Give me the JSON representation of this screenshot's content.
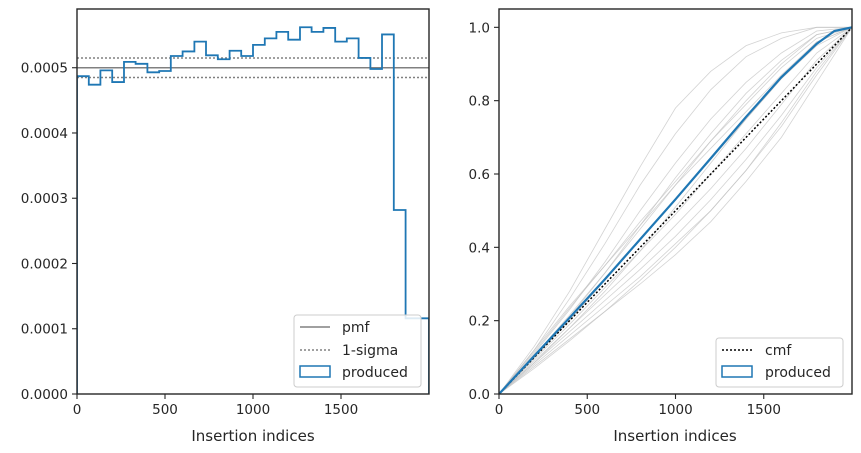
{
  "chart_data": [
    {
      "type": "line",
      "xlabel": "Insertion indices",
      "ylabel": "",
      "xlim": [
        0,
        2000
      ],
      "ylim": [
        0,
        0.00059
      ],
      "xticks": [
        0,
        500,
        1000,
        1500
      ],
      "xtick_labels": [
        "0",
        "500",
        "1000",
        "1500"
      ],
      "yticks": [
        0,
        0.0001,
        0.0002,
        0.0003,
        0.0004,
        0.0005
      ],
      "ytick_labels": [
        "0.0000",
        "0.0001",
        "0.0002",
        "0.0003",
        "0.0004",
        "0.0005"
      ],
      "grid": false,
      "legend_position": "lower-right",
      "colors": {
        "pmf": "#808080",
        "sigma": "#808080",
        "produced": "#1f77b4"
      },
      "legend": [
        {
          "label": "pmf",
          "style": "solid-line"
        },
        {
          "label": "1-sigma",
          "style": "dotted-line"
        },
        {
          "label": "produced",
          "style": "box"
        }
      ],
      "pmf": 0.0005,
      "sigma_band": [
        0.000485,
        0.000515
      ],
      "histogram": {
        "bin_edges": [
          0,
          67,
          133,
          200,
          267,
          333,
          400,
          467,
          533,
          600,
          667,
          733,
          800,
          867,
          933,
          1000,
          1067,
          1133,
          1200,
          1267,
          1333,
          1400,
          1467,
          1533,
          1600,
          1667,
          1733,
          1800,
          1867,
          1933,
          2000
        ],
        "values": [
          0.000487,
          0.000474,
          0.000496,
          0.000478,
          0.000509,
          0.000506,
          0.000493,
          0.000495,
          0.000518,
          0.000525,
          0.00054,
          0.000519,
          0.000513,
          0.000526,
          0.000518,
          0.000535,
          0.000545,
          0.000555,
          0.000543,
          0.000562,
          0.000555,
          0.000561,
          0.00054,
          0.000545,
          0.000515,
          0.000498,
          0.000551,
          0.000282,
          0.000116,
          0.000116
        ]
      }
    },
    {
      "type": "line",
      "xlabel": "Insertion indices",
      "ylabel": "",
      "xlim": [
        0,
        2000
      ],
      "ylim": [
        0,
        1.05
      ],
      "xticks": [
        0,
        500,
        1000,
        1500
      ],
      "xtick_labels": [
        "0",
        "500",
        "1000",
        "1500"
      ],
      "yticks": [
        0,
        0.2,
        0.4,
        0.6,
        0.8,
        1.0
      ],
      "ytick_labels": [
        "0.0",
        "0.2",
        "0.4",
        "0.6",
        "0.8",
        "1.0"
      ],
      "grid": false,
      "legend_position": "lower-right",
      "colors": {
        "cmf": "#000000",
        "produced": "#1f77b4",
        "runs": "#c0c0c0"
      },
      "legend": [
        {
          "label": "cmf",
          "style": "dotted-line"
        },
        {
          "label": "produced",
          "style": "box"
        }
      ],
      "cmf": {
        "x": [
          0,
          2000
        ],
        "y": [
          0,
          1
        ]
      },
      "produced": {
        "x": [
          0,
          200,
          400,
          600,
          800,
          1000,
          1200,
          1400,
          1600,
          1800,
          1900,
          2000
        ],
        "y": [
          0,
          0.104,
          0.208,
          0.313,
          0.422,
          0.531,
          0.643,
          0.756,
          0.864,
          0.955,
          0.99,
          1.0
        ]
      },
      "runs": [
        {
          "x": [
            0,
            200,
            400,
            600,
            800,
            1000,
            1200,
            1400,
            1600,
            1800,
            2000
          ],
          "y": [
            0,
            0.13,
            0.28,
            0.45,
            0.62,
            0.78,
            0.88,
            0.95,
            0.985,
            1.0,
            1.0
          ]
        },
        {
          "x": [
            0,
            200,
            400,
            600,
            800,
            1000,
            1200,
            1400,
            1600,
            1800,
            2000
          ],
          "y": [
            0,
            0.12,
            0.26,
            0.41,
            0.57,
            0.71,
            0.83,
            0.92,
            0.97,
            1.0,
            1.0
          ]
        },
        {
          "x": [
            0,
            200,
            400,
            600,
            800,
            1000,
            1200,
            1400,
            1600,
            1800,
            2000
          ],
          "y": [
            0,
            0.11,
            0.23,
            0.36,
            0.5,
            0.63,
            0.75,
            0.85,
            0.93,
            0.99,
            1.0
          ]
        },
        {
          "x": [
            0,
            200,
            400,
            600,
            800,
            1000,
            1200,
            1400,
            1600,
            1800,
            2000
          ],
          "y": [
            0,
            0.105,
            0.215,
            0.33,
            0.45,
            0.57,
            0.69,
            0.8,
            0.9,
            0.98,
            1.0
          ]
        },
        {
          "x": [
            0,
            200,
            400,
            600,
            800,
            1000,
            1200,
            1400,
            1600,
            1800,
            2000
          ],
          "y": [
            0,
            0.1,
            0.2,
            0.31,
            0.42,
            0.53,
            0.64,
            0.75,
            0.86,
            0.96,
            1.0
          ]
        },
        {
          "x": [
            0,
            200,
            400,
            600,
            800,
            1000,
            1200,
            1400,
            1600,
            1800,
            2000
          ],
          "y": [
            0,
            0.095,
            0.19,
            0.29,
            0.39,
            0.49,
            0.6,
            0.71,
            0.82,
            0.93,
            1.0
          ]
        },
        {
          "x": [
            0,
            200,
            400,
            600,
            800,
            1000,
            1200,
            1400,
            1600,
            1800,
            2000
          ],
          "y": [
            0,
            0.09,
            0.18,
            0.27,
            0.36,
            0.46,
            0.56,
            0.67,
            0.79,
            0.91,
            1.0
          ]
        },
        {
          "x": [
            0,
            200,
            400,
            600,
            800,
            1000,
            1200,
            1400,
            1600,
            1800,
            2000
          ],
          "y": [
            0,
            0.085,
            0.17,
            0.255,
            0.34,
            0.43,
            0.53,
            0.64,
            0.76,
            0.89,
            1.0
          ]
        },
        {
          "x": [
            0,
            200,
            400,
            600,
            800,
            1000,
            1200,
            1400,
            1600,
            1800,
            2000
          ],
          "y": [
            0,
            0.08,
            0.16,
            0.24,
            0.32,
            0.41,
            0.5,
            0.61,
            0.73,
            0.87,
            1.0
          ]
        },
        {
          "x": [
            0,
            200,
            400,
            600,
            800,
            1000,
            1200,
            1400,
            1600,
            1800,
            2000
          ],
          "y": [
            0,
            0.075,
            0.15,
            0.225,
            0.3,
            0.38,
            0.47,
            0.58,
            0.7,
            0.85,
            1.0
          ]
        },
        {
          "x": [
            0,
            200,
            400,
            600,
            800,
            1000,
            1200,
            1400,
            1600,
            1800,
            2000
          ],
          "y": [
            0,
            0.12,
            0.24,
            0.35,
            0.46,
            0.57,
            0.67,
            0.77,
            0.87,
            0.96,
            1.0
          ]
        },
        {
          "x": [
            0,
            200,
            400,
            600,
            800,
            1000,
            1200,
            1400,
            1600,
            1800,
            2000
          ],
          "y": [
            0,
            0.085,
            0.18,
            0.28,
            0.39,
            0.51,
            0.63,
            0.75,
            0.86,
            0.95,
            1.0
          ]
        },
        {
          "x": [
            0,
            200,
            400,
            600,
            800,
            1000,
            1200,
            1400,
            1600,
            1800,
            2000
          ],
          "y": [
            0,
            0.1,
            0.21,
            0.33,
            0.46,
            0.59,
            0.71,
            0.82,
            0.91,
            0.98,
            1.0
          ]
        },
        {
          "x": [
            0,
            200,
            400,
            600,
            800,
            1000,
            1200,
            1400,
            1600,
            1800,
            2000
          ],
          "y": [
            0,
            0.07,
            0.145,
            0.225,
            0.31,
            0.4,
            0.5,
            0.61,
            0.74,
            0.88,
            1.0
          ]
        },
        {
          "x": [
            0,
            200,
            400,
            600,
            800,
            1000,
            1200,
            1400,
            1600,
            1800,
            2000
          ],
          "y": [
            0,
            0.115,
            0.235,
            0.35,
            0.47,
            0.58,
            0.69,
            0.79,
            0.89,
            0.97,
            1.0
          ]
        }
      ]
    }
  ]
}
